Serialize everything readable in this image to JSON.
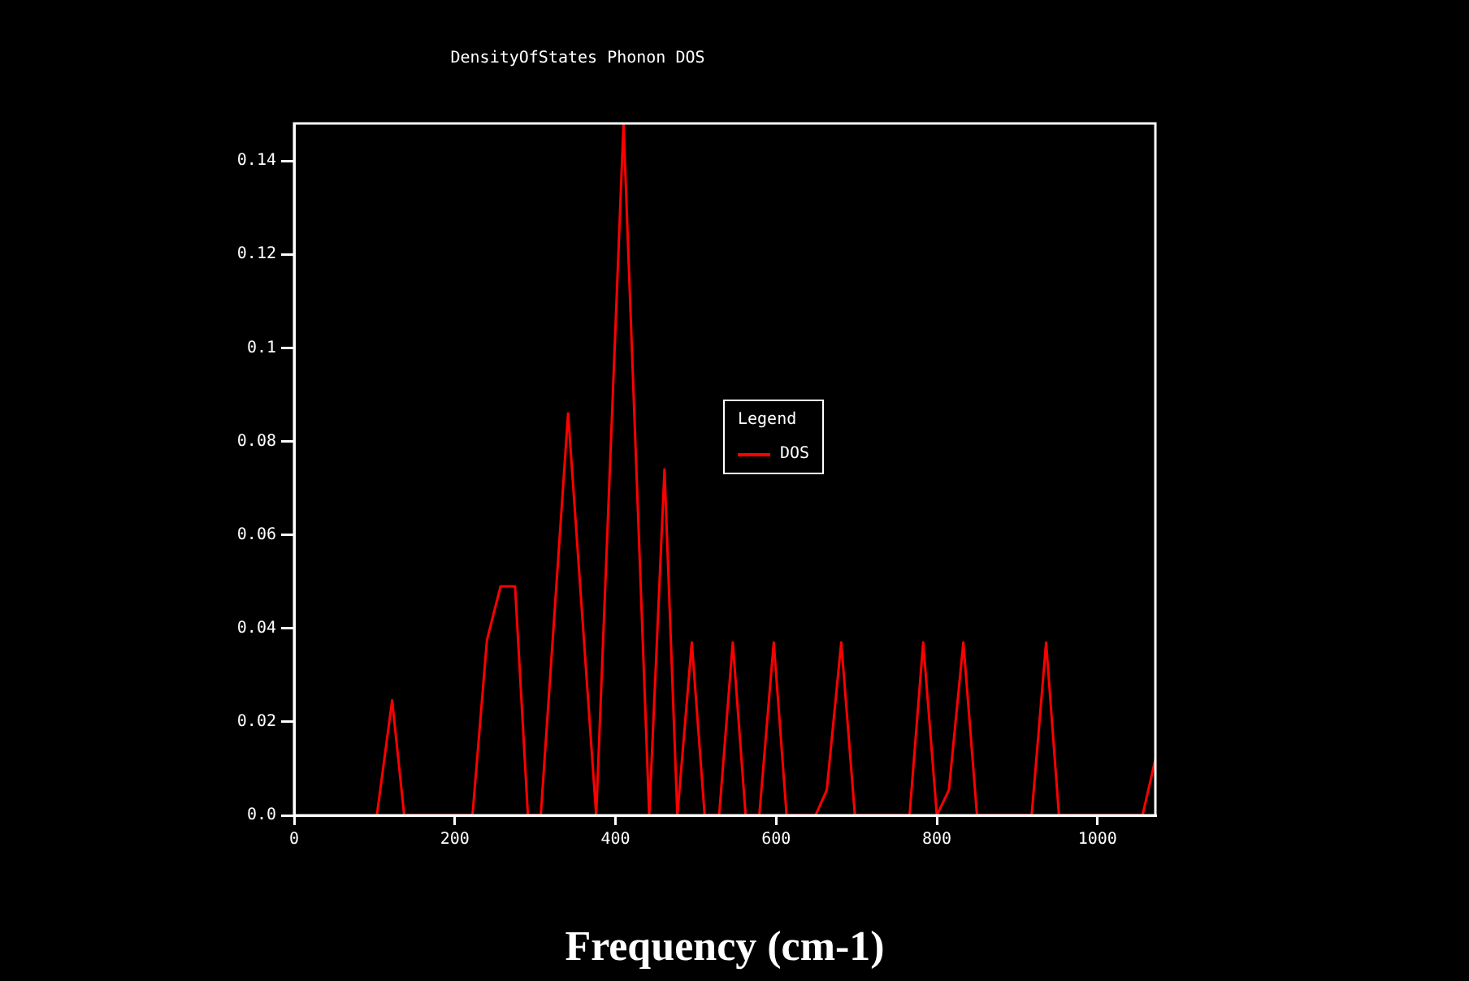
{
  "chart_data": {
    "type": "line",
    "title": "DensityOfStates Phonon DOS",
    "xlabel": "Frequency (cm-1)",
    "legend_title": "Legend",
    "legend": "center",
    "grid": false,
    "marker": "none",
    "line_style": "solid",
    "xlim": [
      0,
      1072
    ],
    "xticks": [
      0,
      200,
      400,
      600,
      800,
      1000
    ],
    "ylim": [
      0,
      0.148
    ],
    "yticks": [
      {
        "value": 0,
        "label": "0.0"
      },
      0.02,
      0.04,
      0.06,
      0.08,
      0.1,
      0.12,
      0.14
    ],
    "series": [
      {
        "name": "DOS",
        "color": "#ff0000",
        "x": [
          103,
          122,
          137,
          222,
          240,
          257,
          275,
          291,
          307,
          341,
          376,
          410,
          442,
          461,
          477,
          495,
          511,
          529,
          546,
          562,
          579,
          597,
          613,
          649,
          663,
          681,
          698,
          766,
          783,
          800,
          815,
          833,
          850,
          918,
          936,
          952,
          1056,
          1072
        ],
        "values": [
          0,
          0.0246,
          0,
          0,
          0.0375,
          0.049,
          0.049,
          0,
          0,
          0.086,
          0,
          0.148,
          0,
          0.074,
          0,
          0.037,
          0,
          0,
          0.037,
          0,
          0,
          0.037,
          0,
          0,
          0.0054,
          0.037,
          0,
          0,
          0.037,
          0,
          0.0054,
          0.037,
          0,
          0,
          0.037,
          0,
          0,
          0.012
        ]
      }
    ]
  }
}
